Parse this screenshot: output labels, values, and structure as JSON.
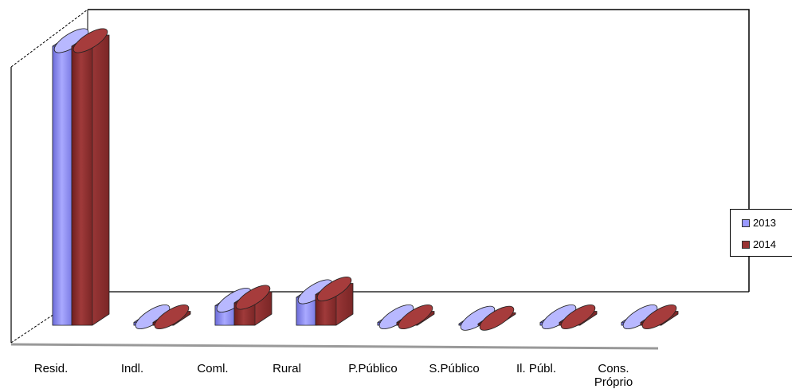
{
  "chart_data": {
    "type": "bar",
    "categories": [
      "Resid.",
      "Indl.",
      "Coml.",
      "Rural",
      "P.Público",
      "S.Público",
      "Il. Públ.",
      "Cons. Próprio"
    ],
    "series": [
      {
        "name": "2013",
        "color": "#9999ff",
        "values": [
          100,
          1,
          7,
          10,
          1,
          0.5,
          1,
          1
        ]
      },
      {
        "name": "2014",
        "color": "#993333",
        "values": [
          100,
          1,
          8,
          11,
          1,
          0.5,
          1,
          1
        ]
      }
    ],
    "ylim": [
      0,
      100
    ],
    "grid": false,
    "legend_position": "right"
  }
}
